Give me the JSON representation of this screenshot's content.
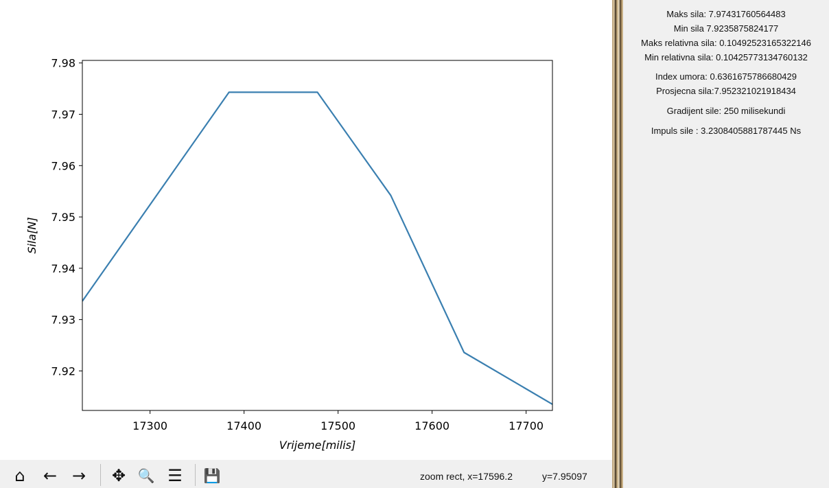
{
  "chart_data": {
    "type": "line",
    "xlabel": "Vrijeme[milis]",
    "ylabel": "Sila[N]",
    "xlim": [
      17228,
      17728
    ],
    "ylim": [
      7.9123,
      7.9805
    ],
    "x_ticks": [
      17300,
      17400,
      17500,
      17600,
      17700
    ],
    "x_tick_labels": [
      "17300",
      "17400",
      "17500",
      "17600",
      "17700"
    ],
    "y_ticks": [
      7.92,
      7.93,
      7.94,
      7.95,
      7.96,
      7.97,
      7.98
    ],
    "y_tick_labels": [
      "7.92",
      "7.93",
      "7.94",
      "7.95",
      "7.96",
      "7.97",
      "7.98"
    ],
    "grid": false,
    "series": [
      {
        "color": "#3a7fb0",
        "x": [
          17228,
          17384,
          17478,
          17556,
          17634,
          17728
        ],
        "y": [
          7.9336,
          7.9743,
          7.9743,
          7.9542,
          7.9236,
          7.9135
        ]
      }
    ]
  },
  "toolbar": {
    "buttons": [
      {
        "name": "home-icon",
        "glyph": "⌂"
      },
      {
        "name": "back-arrow-icon",
        "glyph": "←"
      },
      {
        "name": "forward-arrow-icon",
        "glyph": "→"
      },
      {
        "name": "pan-icon",
        "glyph": "✥"
      },
      {
        "name": "zoom-icon",
        "glyph": "🔍"
      },
      {
        "name": "subplots-config-icon",
        "glyph": "☰"
      },
      {
        "name": "save-icon",
        "glyph": "💾"
      }
    ],
    "status_text": "zoom rect, x=17596.2",
    "status_y": "y=7.95097"
  },
  "info_panel": {
    "lines": [
      "Maks sila: 7.97431760564483",
      "Min sila 7.9235875824177",
      "Maks relativna sila: 0.10492523165322146",
      "Min relativna sila: 0.10425773134760132",
      "Index umora: 0.6361675786680429",
      "Prosjecna sila:7.952321021918434",
      "Gradijent sile: 250 milisekundi",
      "Impuls sile : 3.2308405881787445 Ns"
    ]
  }
}
